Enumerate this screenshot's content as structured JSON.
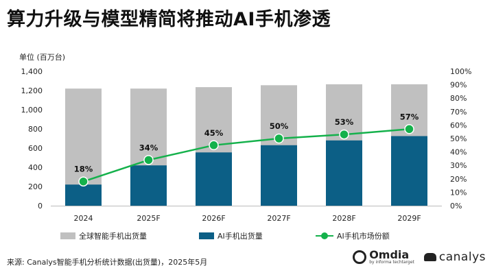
{
  "title": "算力升级与模型精简将推动AI手机渗透",
  "unit_label": "单位 (百万台)",
  "colors": {
    "total": "#c0c0c0",
    "ai": "#0c5f86",
    "share": "#14b14b"
  },
  "chart_data": {
    "type": "bar",
    "categories": [
      "2024",
      "2025F",
      "2026F",
      "2027F",
      "2028F",
      "2029F"
    ],
    "series": [
      {
        "name": "全球智能手机出货量",
        "type": "bar",
        "axis": "left",
        "values": [
          1220,
          1220,
          1235,
          1255,
          1265,
          1265
        ]
      },
      {
        "name": "AI手机出货量",
        "type": "bar",
        "axis": "left",
        "values": [
          220,
          420,
          555,
          630,
          680,
          725
        ]
      },
      {
        "name": "AI手机市场份额",
        "type": "line",
        "axis": "right",
        "values": [
          18,
          34,
          45,
          50,
          53,
          57
        ],
        "labels": [
          "18%",
          "34%",
          "45%",
          "50%",
          "53%",
          "57%"
        ]
      }
    ],
    "y_left": {
      "range": [
        0,
        1400
      ],
      "ticks": [
        "0",
        "200",
        "400",
        "600",
        "800",
        "1,000",
        "1,200",
        "1,400"
      ]
    },
    "y_right": {
      "range": [
        0,
        100
      ],
      "ticks": [
        "0%",
        "10%",
        "20%",
        "30%",
        "40%",
        "50%",
        "60%",
        "70%",
        "80%",
        "90%",
        "100%"
      ]
    },
    "grid": false,
    "legend_position": "bottom"
  },
  "legend": [
    {
      "label": "全球智能手机出货量"
    },
    {
      "label": "AI手机出货量"
    },
    {
      "label": "AI手机市场份额"
    }
  ],
  "source": "来源: Canalys智能手机分析统计数据(出货量)，2025年5月",
  "logos": {
    "omdia_name": "Omdia",
    "omdia_sub": "by informa techtarget",
    "canalys_name": "canalys"
  }
}
